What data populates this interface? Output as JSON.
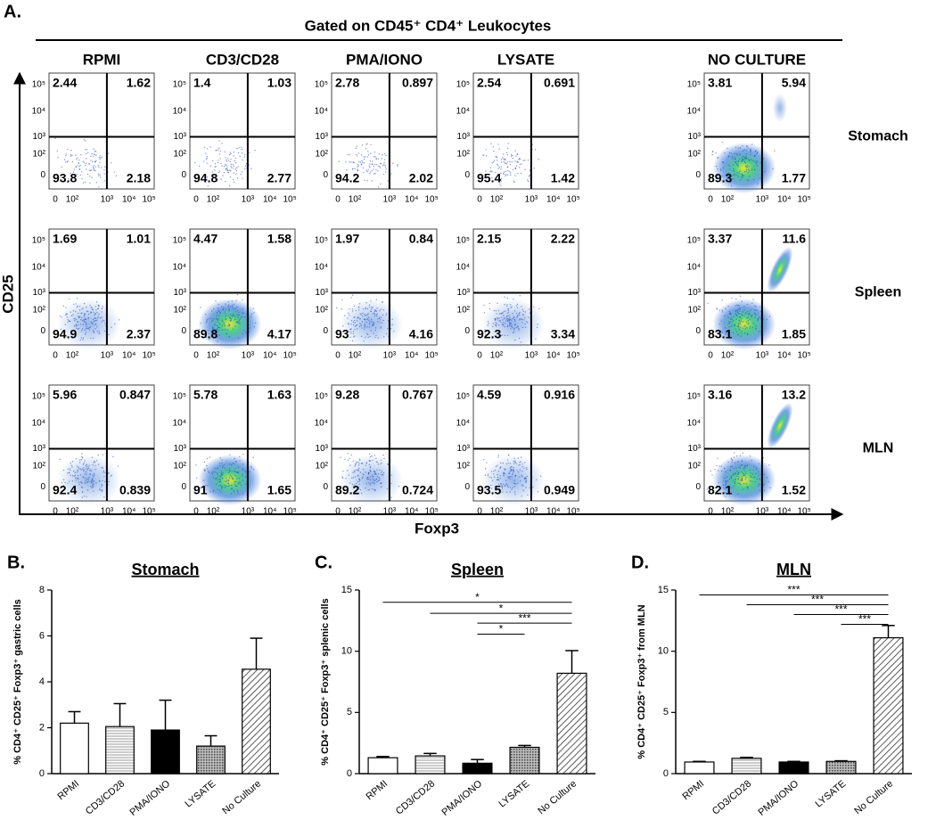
{
  "panel_a": {
    "label": "A.",
    "title": "Gated on CD45⁺ CD4⁺ Leukocytes",
    "columns": [
      "RPMI",
      "CD3/CD28",
      "PMA/IONO",
      "LYSATE",
      "NO CULTURE"
    ],
    "y_axis_label": "CD25",
    "x_axis_label": "Foxp3",
    "x_ticks": [
      "0",
      "10²",
      "10³",
      "10⁴",
      "10⁵"
    ],
    "y_ticks": [
      "0",
      "10²",
      "10³",
      "10⁴",
      "10⁵"
    ],
    "rows": [
      {
        "name": "Stomach",
        "plots": [
          {
            "ul": 2.44,
            "ur": 1.62,
            "ll": 93.8,
            "lr": 2.18
          },
          {
            "ul": 1.4,
            "ur": 1.03,
            "ll": 94.8,
            "lr": 2.77
          },
          {
            "ul": 2.78,
            "ur": 0.897,
            "ll": 94.2,
            "lr": 2.02
          },
          {
            "ul": 2.54,
            "ur": 0.691,
            "ll": 95.4,
            "lr": 1.42
          },
          {
            "ul": 3.81,
            "ur": 5.94,
            "ll": 89.3,
            "lr": 1.77
          }
        ]
      },
      {
        "name": "Spleen",
        "plots": [
          {
            "ul": 1.69,
            "ur": 1.01,
            "ll": 94.9,
            "lr": 2.37
          },
          {
            "ul": 4.47,
            "ur": 1.58,
            "ll": 89.8,
            "lr": 4.17
          },
          {
            "ul": 1.97,
            "ur": 0.84,
            "ll": 93,
            "lr": 4.16
          },
          {
            "ul": 2.15,
            "ur": 2.22,
            "ll": 92.3,
            "lr": 3.34
          },
          {
            "ul": 3.37,
            "ur": 11.6,
            "ll": 83.1,
            "lr": 1.85
          }
        ]
      },
      {
        "name": "MLN",
        "plots": [
          {
            "ul": 5.96,
            "ur": 0.847,
            "ll": 92.4,
            "lr": 0.839
          },
          {
            "ul": 5.78,
            "ur": 1.63,
            "ll": 91,
            "lr": 1.65
          },
          {
            "ul": 9.28,
            "ur": 0.767,
            "ll": 89.2,
            "lr": 0.724
          },
          {
            "ul": 4.59,
            "ur": 0.916,
            "ll": 93.5,
            "lr": 0.949
          },
          {
            "ul": 3.16,
            "ur": 13.2,
            "ll": 82.1,
            "lr": 1.52
          }
        ]
      }
    ]
  },
  "chart_data": [
    {
      "type": "bar",
      "label": "B.",
      "title": "Stomach",
      "y_axis_label": "% CD4⁺ CD25⁺ Foxp3⁺ gastric cells",
      "categories": [
        "RPMI",
        "CD3/CD28",
        "PMA/IONO",
        "LYSATE",
        "No Culture"
      ],
      "values": [
        2.2,
        2.05,
        1.9,
        1.2,
        4.55
      ],
      "errors": [
        0.5,
        1.0,
        1.3,
        0.45,
        1.35
      ],
      "ylim": [
        0,
        8
      ],
      "yticks": [
        0,
        2,
        4,
        6,
        8
      ],
      "annotations": []
    },
    {
      "type": "bar",
      "label": "C.",
      "title": "Spleen",
      "y_axis_label": "% CD4⁺ CD25⁺ Foxp3⁺ splenic cells",
      "categories": [
        "RPMI",
        "CD3/CD28",
        "PMA/IONO",
        "LYSATE",
        "No Culture"
      ],
      "values": [
        1.3,
        1.45,
        0.85,
        2.15,
        8.2
      ],
      "errors": [
        0.1,
        0.2,
        0.3,
        0.15,
        1.85
      ],
      "ylim": [
        0,
        15
      ],
      "yticks": [
        0,
        5,
        10,
        15
      ],
      "annotations": [
        {
          "label": "*",
          "from": "RPMI",
          "to": "No Culture",
          "y": 14
        },
        {
          "label": "*",
          "from": "CD3/CD28",
          "to": "No Culture",
          "y": 13.1
        },
        {
          "label": "***",
          "from": "PMA/IONO",
          "to": "No Culture",
          "y": 12.3
        },
        {
          "label": "*",
          "from": "PMA/IONO",
          "to": "LYSATE",
          "y": 11.4
        }
      ]
    },
    {
      "type": "bar",
      "label": "D.",
      "title": "MLN",
      "y_axis_label": "% CD4⁺ CD25⁺ Foxp3⁺ from MLN",
      "categories": [
        "RPMI",
        "CD3/CD28",
        "PMA/IONO",
        "LYSATE",
        "No Culture"
      ],
      "values": [
        0.95,
        1.25,
        0.95,
        1.0,
        11.1
      ],
      "errors": [
        0.05,
        0.08,
        0.05,
        0.05,
        1.0
      ],
      "ylim": [
        0,
        15
      ],
      "yticks": [
        0,
        5,
        10,
        15
      ],
      "annotations": [
        {
          "label": "***",
          "from": "RPMI",
          "to": "No Culture",
          "y": 14.6
        },
        {
          "label": "***",
          "from": "CD3/CD28",
          "to": "No Culture",
          "y": 13.8
        },
        {
          "label": "***",
          "from": "PMA/IONO",
          "to": "No Culture",
          "y": 13
        },
        {
          "label": "***",
          "from": "LYSATE",
          "to": "No Culture",
          "y": 12.2
        }
      ]
    }
  ]
}
